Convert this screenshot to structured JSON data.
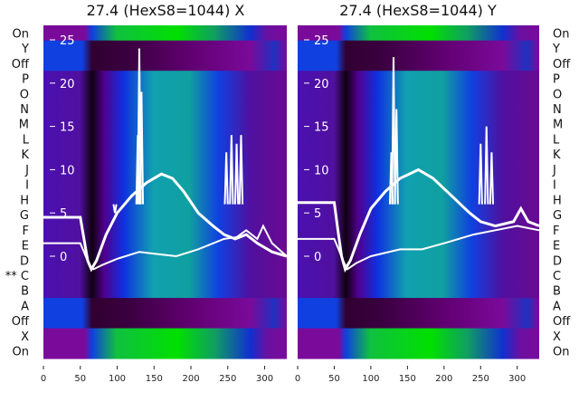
{
  "chart_data": [
    {
      "type": "heatmap",
      "title": "27.4 (HexS8=1044) X",
      "row_labels": [
        "On",
        "Y",
        "Off",
        "P",
        "O",
        "N",
        "M",
        "L",
        "K",
        "J",
        "I",
        "H",
        "G",
        "F",
        "E",
        "D",
        "** C",
        "B",
        "A",
        "Off",
        "X",
        "On"
      ],
      "row_kinds": [
        "on",
        "off",
        "off",
        "data",
        "data",
        "data",
        "data",
        "data",
        "data",
        "data",
        "data",
        "data",
        "data",
        "data",
        "data",
        "data",
        "data",
        "data",
        "off",
        "off",
        "on",
        "on"
      ],
      "xticks": [
        0,
        50,
        100,
        150,
        200,
        250,
        300
      ],
      "xlim": [
        0,
        330
      ],
      "yticks_overlay": [
        0,
        5,
        10,
        15,
        20,
        25
      ],
      "ylim_overlay": [
        -3.5,
        26.5
      ],
      "lines": [
        {
          "name": "upper",
          "points": [
            [
              0,
              4.5
            ],
            [
              50,
              4.5
            ],
            [
              55,
              2
            ],
            [
              60,
              -0.5
            ],
            [
              65,
              -1.5
            ],
            [
              72,
              -0.5
            ],
            [
              85,
              2.5
            ],
            [
              100,
              5
            ],
            [
              120,
              7
            ],
            [
              140,
              8.5
            ],
            [
              160,
              9.5
            ],
            [
              175,
              9
            ],
            [
              190,
              7.5
            ],
            [
              210,
              5
            ],
            [
              230,
              3.5
            ],
            [
              245,
              2.5
            ],
            [
              260,
              2
            ],
            [
              275,
              2.5
            ],
            [
              290,
              1.5
            ],
            [
              310,
              0.5
            ],
            [
              330,
              0
            ]
          ]
        },
        {
          "name": "lower",
          "points": [
            [
              0,
              1.5
            ],
            [
              50,
              1.5
            ],
            [
              55,
              0.5
            ],
            [
              62,
              -1
            ],
            [
              68,
              -1.5
            ],
            [
              80,
              -1
            ],
            [
              100,
              -0.3
            ],
            [
              130,
              0.5
            ],
            [
              160,
              0.2
            ],
            [
              180,
              0
            ],
            [
              210,
              0.8
            ],
            [
              245,
              2
            ],
            [
              262,
              2.2
            ],
            [
              275,
              3
            ],
            [
              290,
              2
            ],
            [
              298,
              3.5
            ],
            [
              310,
              1.5
            ],
            [
              330,
              0
            ]
          ]
        }
      ],
      "spikes": [
        [
          97,
          5
        ],
        [
          128,
          14
        ],
        [
          130,
          24
        ],
        [
          133,
          19
        ],
        [
          248,
          12
        ],
        [
          255,
          14
        ],
        [
          262,
          13
        ],
        [
          268,
          14
        ]
      ]
    },
    {
      "type": "heatmap",
      "title": "27.4 (HexS8=1044) Y",
      "row_labels": [
        "On",
        "Y",
        "Off",
        "P",
        "O",
        "N",
        "M",
        "L",
        "K",
        "J",
        "I",
        "H",
        "G",
        "F",
        "E",
        "D",
        "C",
        "B",
        "A",
        "Off",
        "X",
        "On"
      ],
      "row_kinds": [
        "on",
        "off",
        "off",
        "data",
        "data",
        "data",
        "data",
        "data",
        "data",
        "data",
        "data",
        "data",
        "data",
        "data",
        "data",
        "data",
        "data",
        "data",
        "off",
        "off",
        "on",
        "on"
      ],
      "xticks": [
        0,
        50,
        100,
        150,
        200,
        250,
        300
      ],
      "xlim": [
        0,
        330
      ],
      "yticks_overlay": [
        0,
        5,
        10,
        15,
        20,
        25
      ],
      "ylim_overlay": [
        -3.5,
        26.5
      ],
      "lines": [
        {
          "name": "upper",
          "points": [
            [
              0,
              6.2
            ],
            [
              50,
              6.2
            ],
            [
              55,
              3
            ],
            [
              60,
              0
            ],
            [
              65,
              -1.5
            ],
            [
              72,
              -0.5
            ],
            [
              85,
              2.5
            ],
            [
              100,
              5.5
            ],
            [
              120,
              7.5
            ],
            [
              140,
              9
            ],
            [
              165,
              10
            ],
            [
              185,
              9
            ],
            [
              210,
              7
            ],
            [
              235,
              5
            ],
            [
              250,
              4
            ],
            [
              270,
              3.5
            ],
            [
              295,
              4
            ],
            [
              305,
              5.5
            ],
            [
              315,
              4
            ],
            [
              330,
              3.5
            ]
          ]
        },
        {
          "name": "lower",
          "points": [
            [
              0,
              2
            ],
            [
              50,
              2
            ],
            [
              55,
              1
            ],
            [
              62,
              -0.5
            ],
            [
              68,
              -1.5
            ],
            [
              80,
              -0.8
            ],
            [
              100,
              0
            ],
            [
              140,
              0.8
            ],
            [
              170,
              0.8
            ],
            [
              200,
              1.5
            ],
            [
              240,
              2.5
            ],
            [
              270,
              3
            ],
            [
              300,
              3.5
            ],
            [
              330,
              3
            ]
          ]
        }
      ],
      "spikes": [
        [
          128,
          12
        ],
        [
          131,
          23
        ],
        [
          135,
          17
        ],
        [
          250,
          13
        ],
        [
          258,
          15
        ],
        [
          265,
          12
        ]
      ]
    }
  ]
}
